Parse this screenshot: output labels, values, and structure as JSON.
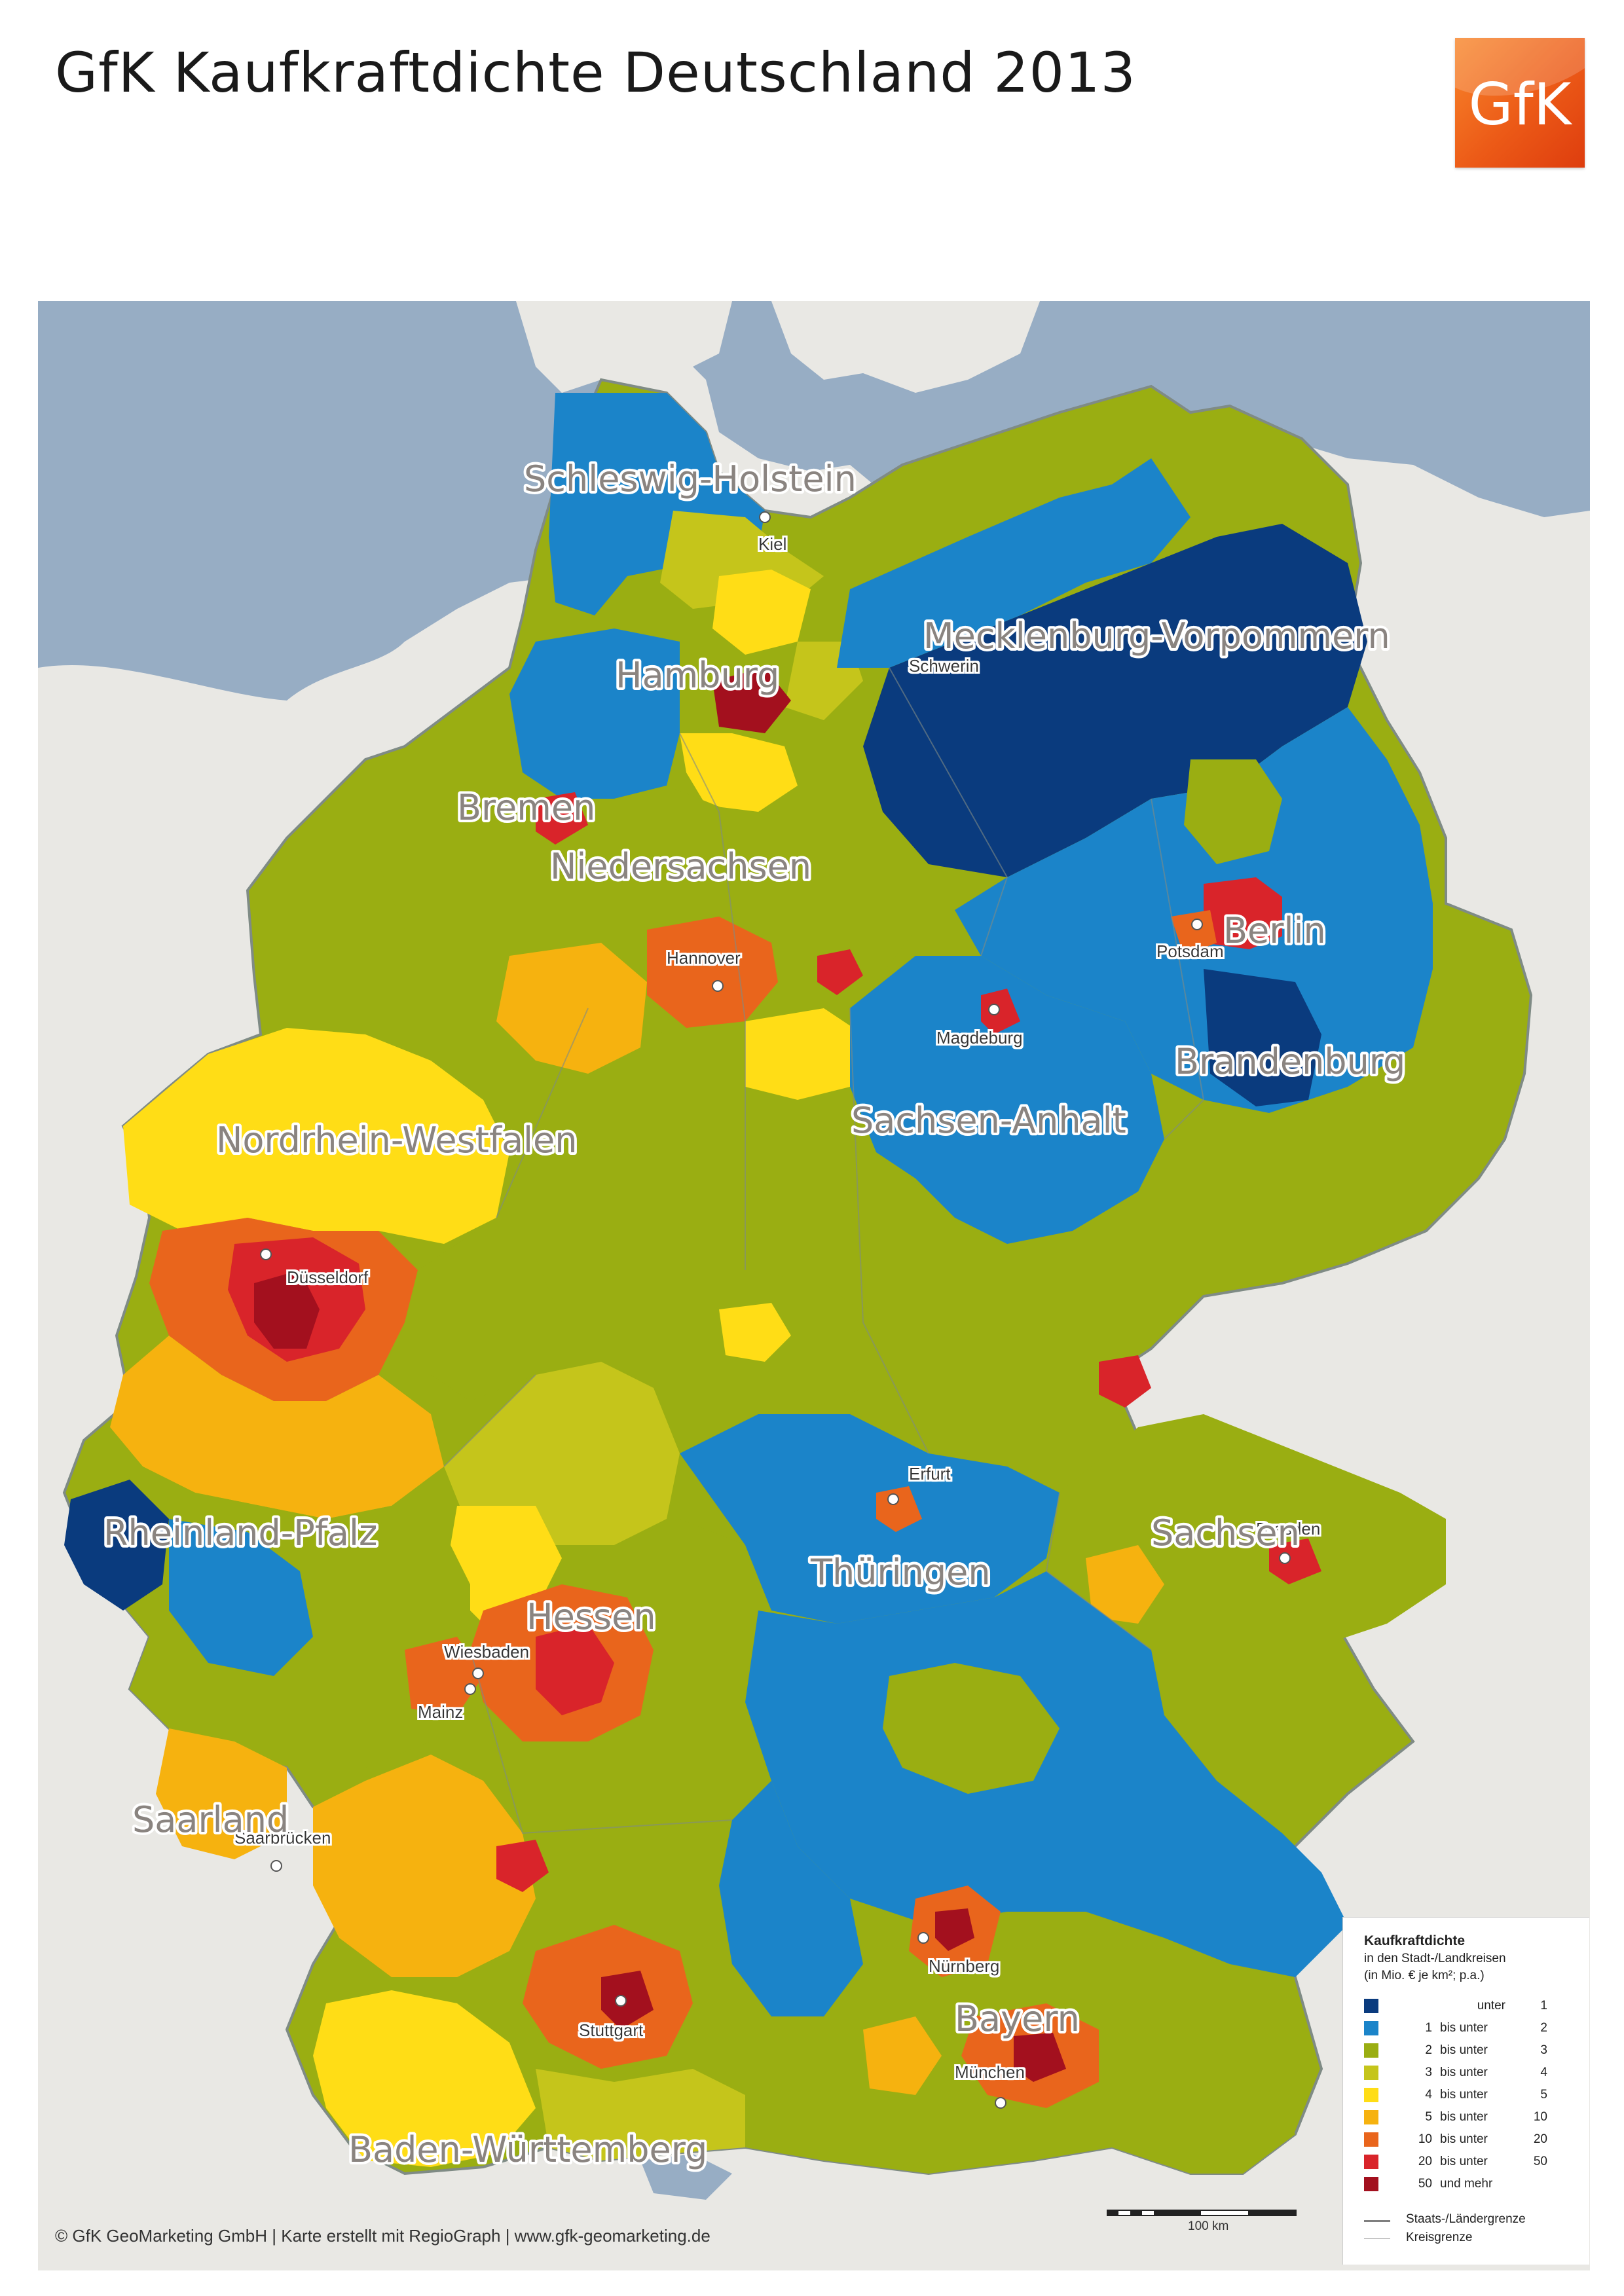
{
  "title": "GfK Kaufkraftdichte Deutschland 2013",
  "logo_text": "GfK",
  "colors": {
    "sea": "#97adc4",
    "land_foreign": "#e9e8e4",
    "class_1": "#0a3b7e",
    "class_2": "#1b84c9",
    "class_3": "#9aae12",
    "class_4": "#c5c51b",
    "class_5": "#ffdd16",
    "class_6": "#f6b20f",
    "class_7": "#e9651c",
    "class_8": "#d9242a",
    "class_9": "#a3101e"
  },
  "states": [
    {
      "name": "Schleswig-Holstein"
    },
    {
      "name": "Mecklenburg-Vorpommern"
    },
    {
      "name": "Hamburg"
    },
    {
      "name": "Bremen"
    },
    {
      "name": "Niedersachsen"
    },
    {
      "name": "Berlin"
    },
    {
      "name": "Brandenburg"
    },
    {
      "name": "Sachsen-Anhalt"
    },
    {
      "name": "Nordrhein-Westfalen"
    },
    {
      "name": "Sachsen"
    },
    {
      "name": "Thüringen"
    },
    {
      "name": "Hessen"
    },
    {
      "name": "Rheinland-Pfalz"
    },
    {
      "name": "Saarland"
    },
    {
      "name": "Bayern"
    },
    {
      "name": "Baden-Württemberg"
    }
  ],
  "cities": [
    {
      "name": "Kiel"
    },
    {
      "name": "Schwerin"
    },
    {
      "name": "Hannover"
    },
    {
      "name": "Potsdam"
    },
    {
      "name": "Magdeburg"
    },
    {
      "name": "Düsseldorf"
    },
    {
      "name": "Dresden"
    },
    {
      "name": "Erfurt"
    },
    {
      "name": "Wiesbaden"
    },
    {
      "name": "Mainz"
    },
    {
      "name": "Saarbrücken"
    },
    {
      "name": "Nürnberg"
    },
    {
      "name": "Stuttgart"
    },
    {
      "name": "München"
    }
  ],
  "legend": {
    "title": "Kaufkraftdichte",
    "subtitle_1": "in den Stadt-/Landkreisen",
    "subtitle_2": "(in Mio. € je km²; p.a.)",
    "classes": [
      {
        "lo": "",
        "mid": "unter",
        "hi": "1",
        "color": "#0a3b7e"
      },
      {
        "lo": "1",
        "mid": "bis unter",
        "hi": "2",
        "color": "#1b84c9"
      },
      {
        "lo": "2",
        "mid": "bis unter",
        "hi": "3",
        "color": "#9aae12"
      },
      {
        "lo": "3",
        "mid": "bis unter",
        "hi": "4",
        "color": "#c5c51b"
      },
      {
        "lo": "4",
        "mid": "bis unter",
        "hi": "5",
        "color": "#ffdd16"
      },
      {
        "lo": "5",
        "mid": "bis unter",
        "hi": "10",
        "color": "#f6b20f"
      },
      {
        "lo": "10",
        "mid": "bis unter",
        "hi": "20",
        "color": "#e9651c"
      },
      {
        "lo": "20",
        "mid": "bis unter",
        "hi": "50",
        "color": "#d9242a"
      },
      {
        "lo": "50",
        "mid": "und mehr",
        "hi": "",
        "color": "#a3101e"
      }
    ],
    "line_state": "Staats-/Ländergrenze",
    "line_district": "Kreisgrenze"
  },
  "scale_label": "100 km",
  "footer": "© GfK GeoMarketing GmbH | Karte erstellt mit RegioGraph | www.gfk-geomarketing.de"
}
